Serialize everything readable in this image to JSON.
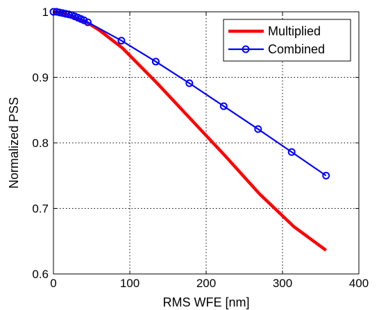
{
  "chart_data": {
    "type": "line",
    "xlabel": "RMS WFE [nm]",
    "ylabel": "Normalized PSS",
    "xlim": [
      0,
      400
    ],
    "ylim": [
      0.6,
      1.0
    ],
    "xticks": [
      0,
      100,
      200,
      300,
      400
    ],
    "xtick_labels": [
      "0",
      "100",
      "200",
      "300",
      "400"
    ],
    "yticks": [
      0.6,
      0.7,
      0.8,
      0.9,
      1.0
    ],
    "ytick_labels": [
      "0.6",
      "0.7",
      "0.8",
      "0.9",
      "1"
    ],
    "grid": true,
    "legend_position": "top-right",
    "series": [
      {
        "name": "Multiplied",
        "color": "#ff0000",
        "marker": "none",
        "x": [
          0,
          10,
          20,
          30,
          45,
          60,
          90,
          135,
          180,
          225,
          270,
          315,
          357
        ],
        "y": [
          1.0,
          0.998,
          0.995,
          0.99,
          0.983,
          0.972,
          0.945,
          0.892,
          0.836,
          0.78,
          0.722,
          0.672,
          0.636
        ]
      },
      {
        "name": "Combined",
        "color": "#0000ff",
        "marker": "circle",
        "x": [
          0,
          4,
          8,
          12,
          16,
          20,
          24,
          28,
          32,
          36,
          40,
          45,
          89,
          134,
          178,
          223,
          268,
          312,
          357
        ],
        "y": [
          1.0,
          1.0,
          0.999,
          0.998,
          0.997,
          0.996,
          0.995,
          0.993,
          0.991,
          0.989,
          0.987,
          0.984,
          0.956,
          0.924,
          0.891,
          0.856,
          0.821,
          0.786,
          0.75
        ]
      }
    ]
  }
}
